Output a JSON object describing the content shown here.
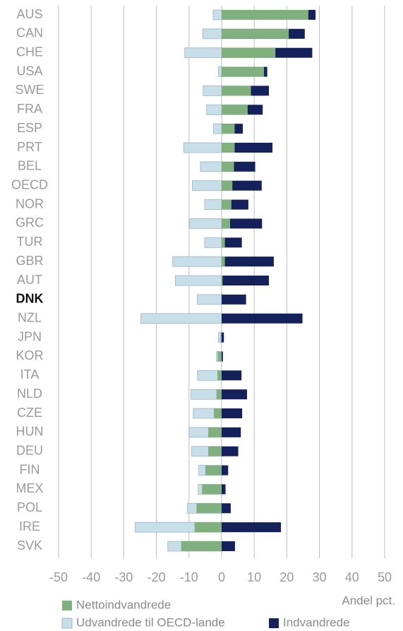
{
  "chart_data": {
    "type": "bar",
    "orientation": "horizontal",
    "x_label": "Andel pct.",
    "categories": [
      "AUS",
      "CAN",
      "CHE",
      "USA",
      "SWE",
      "FRA",
      "ESP",
      "PRT",
      "BEL",
      "OECD",
      "NOR",
      "GRC",
      "TUR",
      "GBR",
      "AUT",
      "DNK",
      "NZL",
      "JPN",
      "KOR",
      "ITA",
      "NLD",
      "CZE",
      "HUN",
      "DEU",
      "FIN",
      "MEX",
      "POL",
      "IRE",
      "SVK"
    ],
    "series": [
      {
        "name": "Nettoindvandrede",
        "color": "#80b07e",
        "values": [
          26.6,
          20.6,
          16.5,
          13,
          9,
          8,
          4,
          4,
          3.8,
          3.3,
          3,
          2.6,
          1,
          1,
          0.3,
          0,
          0,
          -0.3,
          -1.2,
          -1.3,
          -1.6,
          -2.4,
          -4.1,
          -4.1,
          -5,
          -6,
          -7.7,
          -8.3,
          -12.4
        ]
      },
      {
        "name": "Udvandrede til OECD-lande",
        "color": "#c8dfea",
        "values": [
          -2.6,
          -5.8,
          -11.3,
          -1,
          -5.7,
          -4.6,
          -2.5,
          -11.6,
          -6.5,
          -9,
          -5.2,
          -9.8,
          -5.2,
          -15,
          -14.2,
          -7.5,
          -24.8,
          -1,
          -1.6,
          -7.4,
          -9.4,
          -8.7,
          -10,
          -9.2,
          -7,
          -7.2,
          -10.5,
          -26.5,
          -16.5
        ]
      },
      {
        "name": "Indvandrede",
        "color": "#14215a",
        "values": [
          28.8,
          25.5,
          27.8,
          14,
          14.5,
          12.6,
          6.5,
          15.6,
          10.3,
          12.3,
          8.2,
          12.4,
          6.2,
          16,
          14.5,
          7.5,
          24.8,
          0.7,
          0.4,
          6.1,
          7.8,
          6.3,
          5.9,
          5.1,
          2,
          1.2,
          2.8,
          18.2,
          4.1
        ]
      }
    ],
    "xlim": [
      -50,
      50
    ],
    "xticks": [
      -50,
      -40,
      -30,
      -20,
      -10,
      0,
      10,
      20,
      30,
      40,
      50
    ],
    "grid": true
  }
}
